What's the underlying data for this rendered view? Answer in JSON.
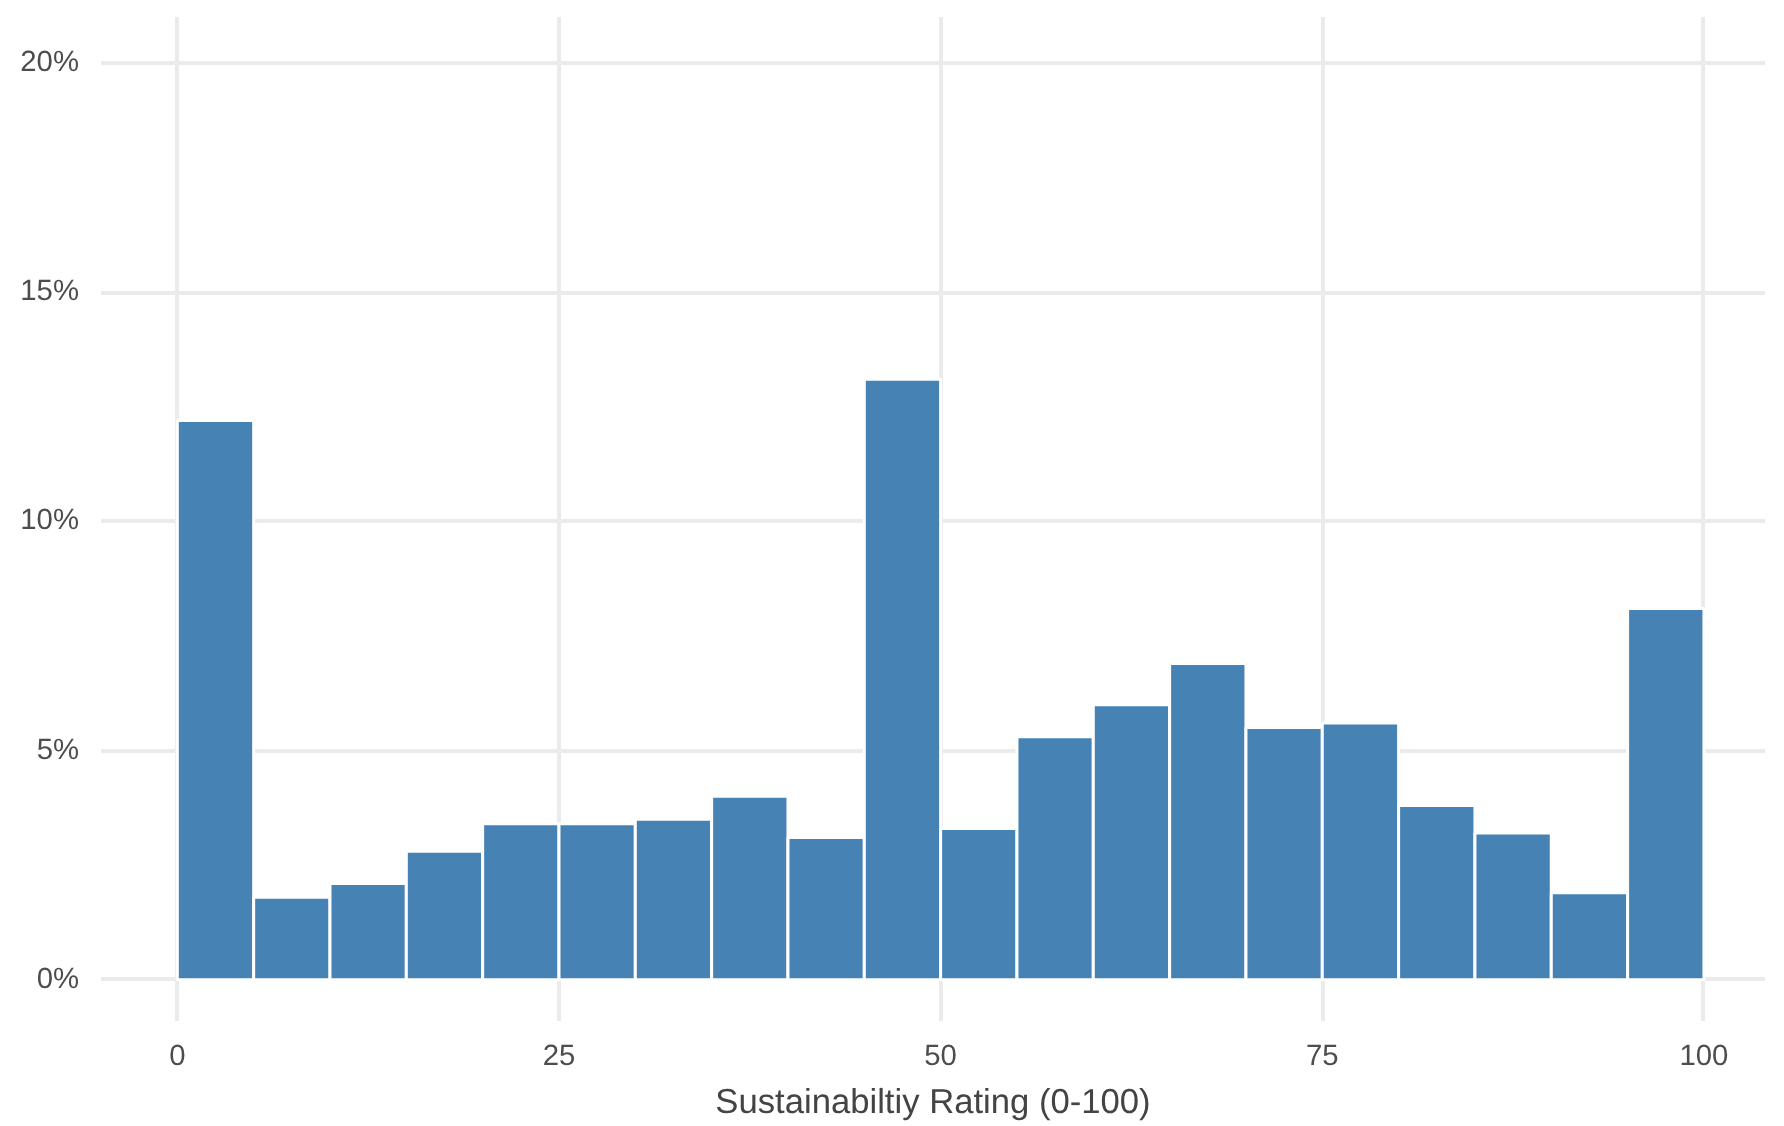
{
  "chart_data": {
    "type": "histogram",
    "xlabel": "Sustainabiltiy Rating (0-100)",
    "color": "#4682b4",
    "bins": [
      0,
      5,
      10,
      15,
      20,
      25,
      30,
      35,
      40,
      45,
      50,
      55,
      60,
      65,
      70,
      75,
      80,
      85,
      90,
      95,
      100
    ],
    "values": [
      12.2,
      1.8,
      2.1,
      2.8,
      3.4,
      3.4,
      3.5,
      4.0,
      3.1,
      13.1,
      3.3,
      5.3,
      6.0,
      6.9,
      5.5,
      5.6,
      3.8,
      3.2,
      1.9,
      8.1
    ],
    "xlim": [
      -5,
      104
    ],
    "xticks": [
      0,
      25,
      50,
      75,
      100
    ],
    "ylim": [
      -0.9,
      21
    ],
    "yticks": [
      {
        "value": 0,
        "label": "0%"
      },
      {
        "value": 5,
        "label": "5%"
      },
      {
        "value": 10,
        "label": "10%"
      },
      {
        "value": 15,
        "label": "15%"
      },
      {
        "value": 20,
        "label": "20%"
      }
    ],
    "grid": true
  }
}
